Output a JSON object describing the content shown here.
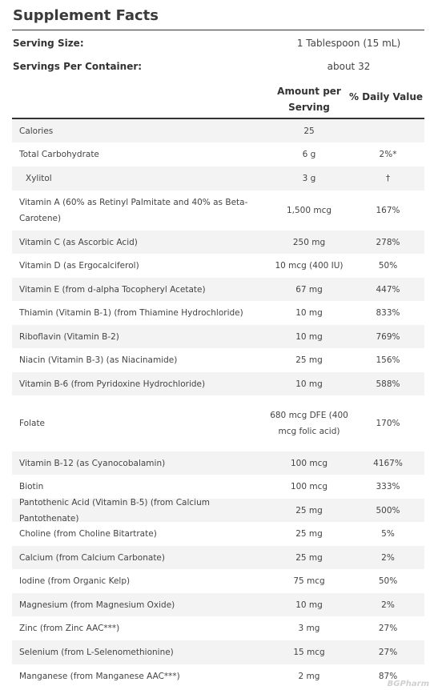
{
  "title": "Supplement Facts",
  "serving_size": {
    "label": "Serving Size:",
    "value": "1 Tablespoon (15 mL)"
  },
  "servings_per_container": {
    "label": "Servings Per Container:",
    "value": "about 32"
  },
  "headers": {
    "amount": "Amount per Serving",
    "daily_value": "% Daily Value"
  },
  "rows": [
    {
      "name": "Calories",
      "amount": "25",
      "dv": ""
    },
    {
      "name": "Total Carbohydrate",
      "amount": "6 g",
      "dv": "2%*"
    },
    {
      "name": "Xylitol",
      "amount": "3 g",
      "dv": "†"
    },
    {
      "name": "Vitamin A (60% as Retinyl Palmitate and 40% as Beta-Carotene)",
      "amount": "1,500 mcg",
      "dv": "167%"
    },
    {
      "name": "Vitamin C (as Ascorbic Acid)",
      "amount": "250 mg",
      "dv": "278%"
    },
    {
      "name": "Vitamin D (as Ergocalciferol)",
      "amount": "10 mcg (400 IU)",
      "dv": "50%"
    },
    {
      "name": "Vitamin E (from d-alpha Tocopheryl Acetate)",
      "amount": "67 mg",
      "dv": "447%"
    },
    {
      "name": "Thiamin (Vitamin B-1) (from Thiamine Hydrochloride)",
      "amount": "10 mg",
      "dv": "833%"
    },
    {
      "name": "Riboflavin (Vitamin B-2)",
      "amount": "10 mg",
      "dv": "769%"
    },
    {
      "name": "Niacin (Vitamin B-3) (as Niacinamide)",
      "amount": "25 mg",
      "dv": "156%"
    },
    {
      "name": "Vitamin B-6 (from Pyridoxine Hydrochloride)",
      "amount": "10 mg",
      "dv": "588%"
    },
    {
      "name": "Folate",
      "amount": "680 mcg DFE (400 mcg folic acid)",
      "dv": "170%"
    },
    {
      "name": "Vitamin B-12 (as Cyanocobalamin)",
      "amount": "100 mcg",
      "dv": "4167%"
    },
    {
      "name": "Biotin",
      "amount": "100 mcg",
      "dv": "333%"
    },
    {
      "name": "Pantothenic Acid (Vitamin B-5) (from Calcium Pantothenate)",
      "amount": "25 mg",
      "dv": "500%"
    },
    {
      "name": "Choline (from Choline Bitartrate)",
      "amount": "25 mg",
      "dv": "5%"
    },
    {
      "name": "Calcium (from Calcium Carbonate)",
      "amount": "25 mg",
      "dv": "2%"
    },
    {
      "name": "Iodine (from Organic Kelp)",
      "amount": "75 mcg",
      "dv": "50%"
    },
    {
      "name": "Magnesium (from Magnesium Oxide)",
      "amount": "10 mg",
      "dv": "2%"
    },
    {
      "name": "Zinc (from Zinc AAC***)",
      "amount": "3 mg",
      "dv": "27%"
    },
    {
      "name": "Selenium (from L-Selenomethionine)",
      "amount": "15 mcg",
      "dv": "27%"
    },
    {
      "name": "Manganese (from Manganese AAC***)",
      "amount": "2 mg",
      "dv": "87%"
    }
  ],
  "watermark": "BGPharm"
}
